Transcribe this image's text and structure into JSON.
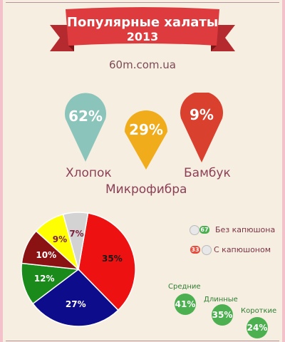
{
  "header": {
    "title": "Популярные халаты",
    "year": "2013",
    "site": "60m.com.ua"
  },
  "materials": [
    {
      "name": "Хлопок",
      "percent": "62%",
      "color": "#8bc4bb"
    },
    {
      "name": "Микрофибра",
      "percent": "29%",
      "color": "#f0ac1b"
    },
    {
      "name": "Бамбук",
      "percent": "9%",
      "color": "#d9402e"
    }
  ],
  "hood": {
    "without": {
      "label": "Без капюшона",
      "count": "67",
      "color": "#4caf50"
    },
    "with": {
      "label": "С капюшоном",
      "count": "33",
      "color": "#e74c3c"
    }
  },
  "lengths": [
    {
      "label": "Средние",
      "percent": "41%",
      "value": 41
    },
    {
      "label": "Длинные",
      "percent": "35%",
      "value": 35
    },
    {
      "label": "Короткие",
      "percent": "24%",
      "value": 24
    }
  ],
  "chart_data": {
    "type": "pie",
    "slices": [
      {
        "label": "35%",
        "value": 35,
        "color": "#ee1111"
      },
      {
        "label": "27%",
        "value": 27,
        "color": "#0d0d8c"
      },
      {
        "label": "12%",
        "value": 12,
        "color": "#1a8a1a"
      },
      {
        "label": "10%",
        "value": 10,
        "color": "#8b1212"
      },
      {
        "label": "9%",
        "value": 9,
        "color": "#ffff00"
      },
      {
        "label": "7%",
        "value": 7,
        "color": "#d3d3d3"
      }
    ],
    "label_colors": [
      "#1a1a1a",
      "#ffffff",
      "#ffffff",
      "#ffffff",
      "#7a1e3a",
      "#7a1e3a"
    ]
  }
}
